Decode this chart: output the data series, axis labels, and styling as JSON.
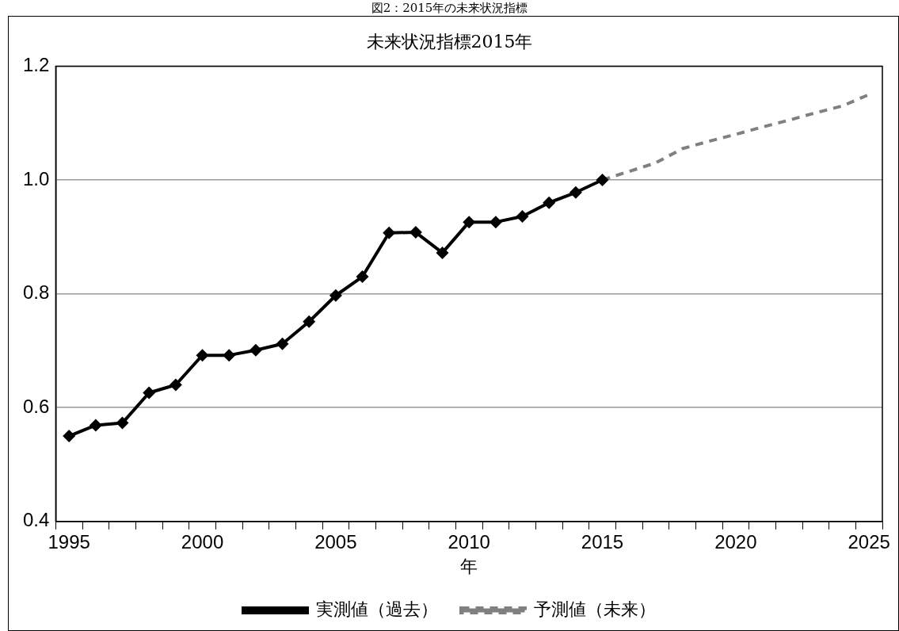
{
  "chart_data": {
    "type": "line",
    "title": "未来状況指標2015年",
    "xlabel": "年",
    "annotations": [
      "図2：2015年の未来状況指標"
    ],
    "categories": [
      "1995",
      null,
      null,
      null,
      null,
      "2000",
      null,
      null,
      null,
      null,
      "2005",
      null,
      null,
      null,
      null,
      "2010",
      null,
      null,
      null,
      null,
      "2015",
      null,
      null,
      null,
      null,
      "2020",
      null,
      null,
      null,
      null,
      "2025"
    ],
    "series": [
      {
        "name": "実測値（過去）",
        "color": "#000000",
        "marker": "diamond",
        "line_style": "solid",
        "values": [
          0.55,
          0.569,
          0.573,
          0.626,
          0.64,
          0.692,
          0.692,
          0.701,
          0.712,
          0.751,
          0.797,
          0.83,
          0.907,
          0.908,
          0.872,
          0.926,
          0.926,
          0.936,
          0.96,
          0.978,
          1.0,
          null,
          null,
          null,
          null,
          null,
          null,
          null,
          null,
          null,
          null
        ]
      },
      {
        "name": "予測値（未来）",
        "color": "#808080",
        "marker": "none",
        "line_style": "dashed",
        "values": [
          null,
          null,
          null,
          null,
          null,
          null,
          null,
          null,
          null,
          null,
          null,
          null,
          null,
          null,
          null,
          null,
          null,
          null,
          null,
          null,
          1.0,
          1.015,
          1.03,
          1.055,
          1.068,
          1.08,
          1.093,
          1.105,
          1.118,
          1.13,
          1.15
        ]
      }
    ],
    "ylim": [
      0.4,
      1.2
    ],
    "yticks": [
      0.4,
      0.6,
      0.8,
      {
        "value": 1,
        "label": "1.0"
      },
      1.2
    ],
    "grid": "y",
    "legend": "bottom"
  }
}
